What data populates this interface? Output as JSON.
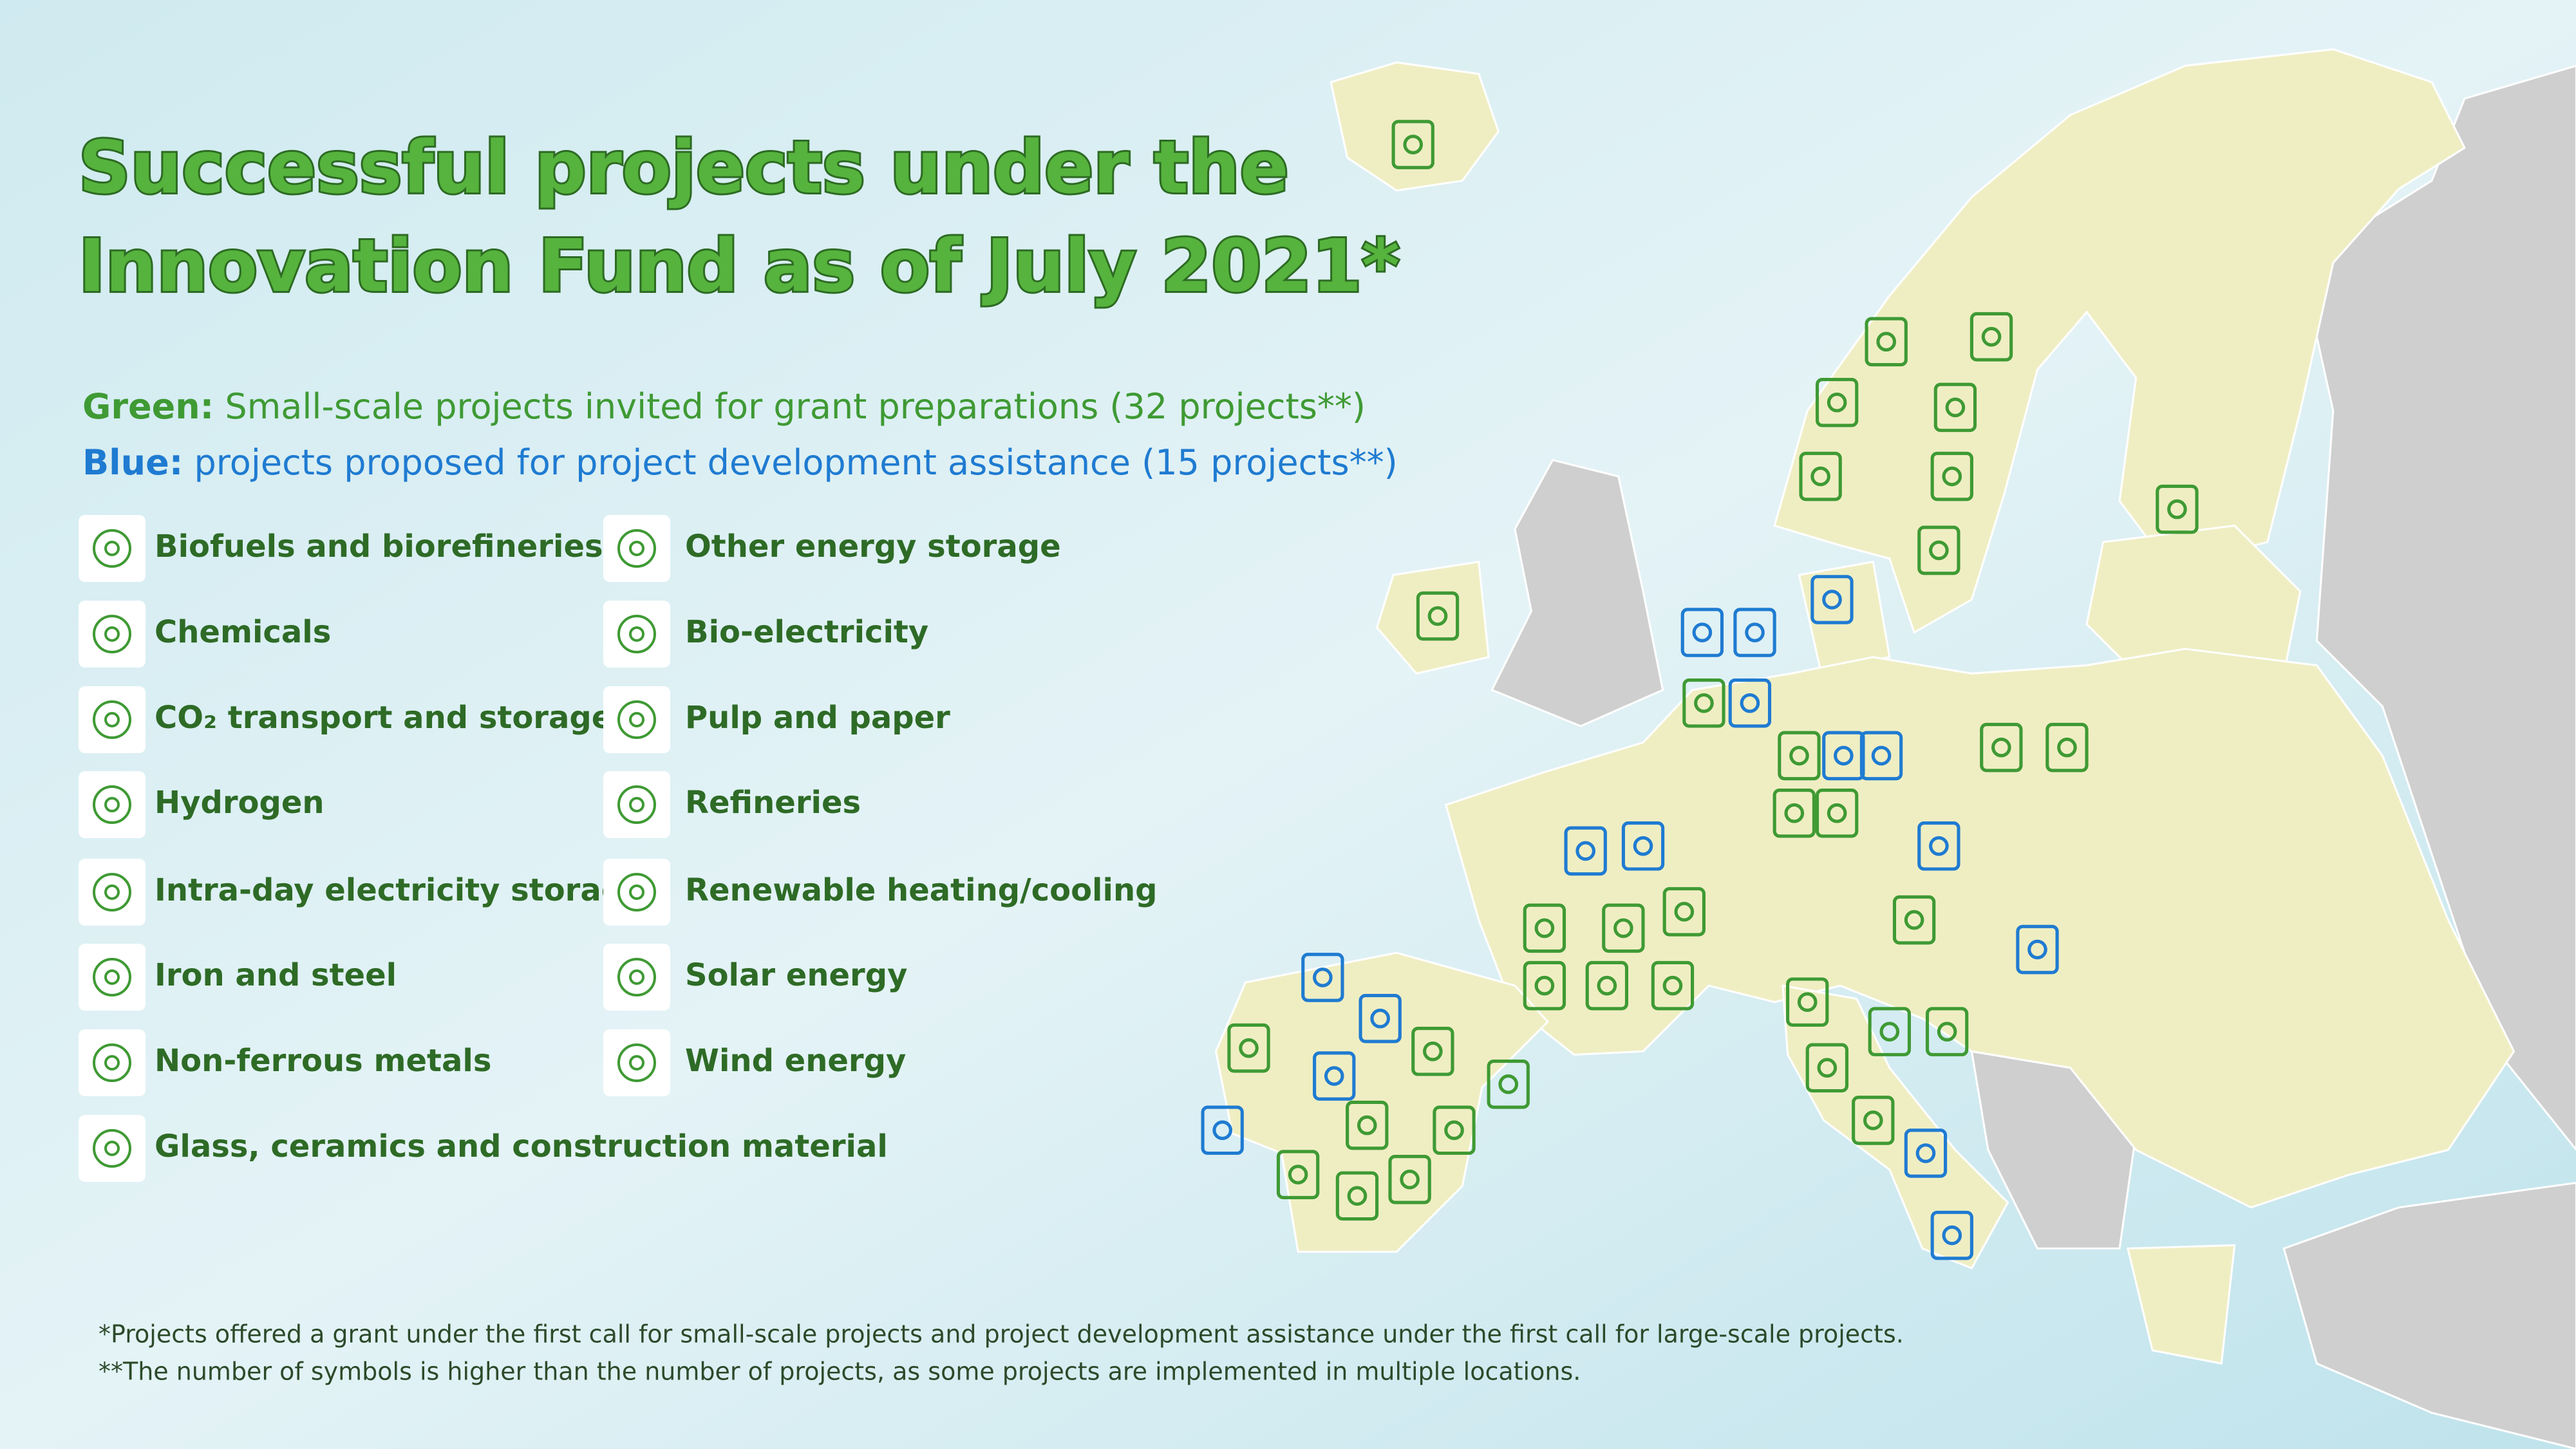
{
  "header": {
    "title": [
      "Successful projects under the",
      "Innovation Fund as of July 2021*"
    ]
  },
  "intro": [
    {
      "label": "Green:",
      "text": "Small-scale projects invited for grant preparations (32 projects**)"
    },
    {
      "label": "Blue:",
      "text": "projects proposed for project development assistance (15 projects**)"
    }
  ],
  "legend": [
    [
      "Biofuels and biorefineries",
      "Chemicals",
      "CO₂ transport and storage",
      "Hydrogen",
      "Intra-day electricity storage",
      "Iron and steel",
      "Non-ferrous metals",
      "Glass, ceramics and construction material"
    ],
    [
      "Other energy storage",
      "Bio-electricity",
      "Pulp and paper",
      "Refineries",
      "Renewable heating/cooling",
      "Solar energy",
      "Wind energy"
    ]
  ],
  "footnotes": [
    "*Projects offered a grant under the first call for small-scale projects and project development assistance under the first call for large-scale projects.",
    "**The number of symbols is higher than the number of projects, as some projects are implemented in multiple locations."
  ]
}
